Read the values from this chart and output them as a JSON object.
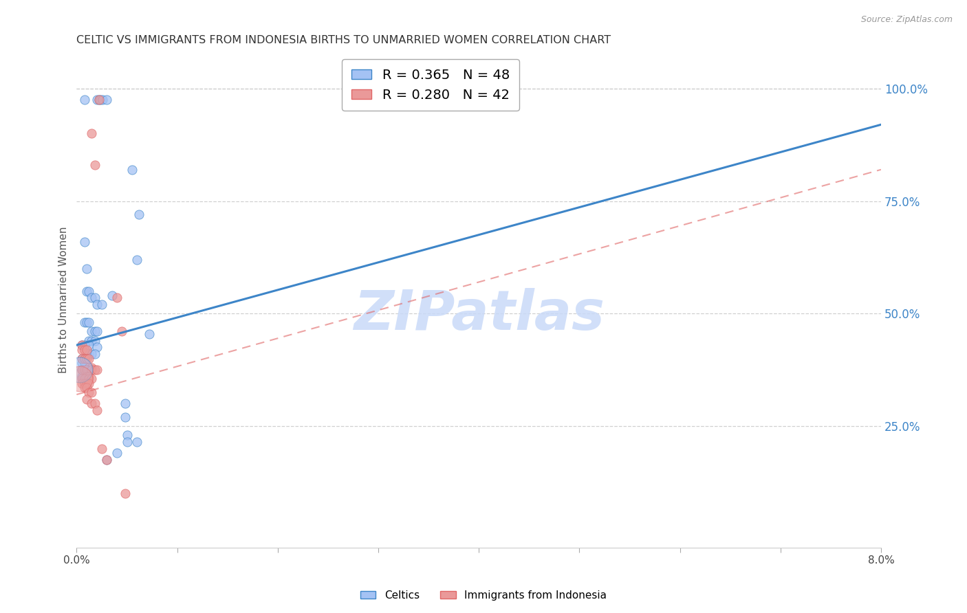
{
  "title": "CELTIC VS IMMIGRANTS FROM INDONESIA BIRTHS TO UNMARRIED WOMEN CORRELATION CHART",
  "source": "Source: ZipAtlas.com",
  "ylabel": "Births to Unmarried Women",
  "xlim": [
    0.0,
    0.08
  ],
  "ylim": [
    -0.02,
    1.08
  ],
  "xticks": [
    0.0,
    0.01,
    0.02,
    0.03,
    0.04,
    0.05,
    0.06,
    0.07,
    0.08
  ],
  "xticklabels": [
    "0.0%",
    "",
    "",
    "",
    "",
    "",
    "",
    "",
    "8.0%"
  ],
  "yticks_right": [
    0.25,
    0.5,
    0.75,
    1.0
  ],
  "ytick_labels_right": [
    "25.0%",
    "50.0%",
    "75.0%",
    "100.0%"
  ],
  "blue_color": "#a4c2f4",
  "pink_color": "#ea9999",
  "blue_line_color": "#3d85c8",
  "pink_line_color": "#e06666",
  "legend_blue_label": "Celtics",
  "legend_pink_label": "Immigrants from Indonesia",
  "R_blue": 0.365,
  "N_blue": 48,
  "R_pink": 0.28,
  "N_pink": 42,
  "watermark": "ZIPatlas",
  "watermark_color": "#c9daf8",
  "blue_line_x": [
    0.0,
    0.08
  ],
  "blue_line_y": [
    0.43,
    0.92
  ],
  "pink_line_x": [
    0.0,
    0.08
  ],
  "pink_line_y": [
    0.32,
    0.82
  ],
  "blue_points": [
    [
      0.0008,
      0.975
    ],
    [
      0.002,
      0.975
    ],
    [
      0.0022,
      0.975
    ],
    [
      0.0024,
      0.975
    ],
    [
      0.0026,
      0.975
    ],
    [
      0.003,
      0.975
    ],
    [
      0.0055,
      0.82
    ],
    [
      0.0062,
      0.72
    ],
    [
      0.0008,
      0.66
    ],
    [
      0.001,
      0.6
    ],
    [
      0.001,
      0.55
    ],
    [
      0.0012,
      0.55
    ],
    [
      0.0015,
      0.535
    ],
    [
      0.0018,
      0.535
    ],
    [
      0.002,
      0.52
    ],
    [
      0.0025,
      0.52
    ],
    [
      0.0008,
      0.48
    ],
    [
      0.001,
      0.48
    ],
    [
      0.0012,
      0.48
    ],
    [
      0.0015,
      0.46
    ],
    [
      0.0018,
      0.46
    ],
    [
      0.002,
      0.46
    ],
    [
      0.0012,
      0.44
    ],
    [
      0.0015,
      0.44
    ],
    [
      0.0018,
      0.44
    ],
    [
      0.0005,
      0.43
    ],
    [
      0.0008,
      0.43
    ],
    [
      0.0012,
      0.43
    ],
    [
      0.002,
      0.425
    ],
    [
      0.0012,
      0.41
    ],
    [
      0.0015,
      0.41
    ],
    [
      0.0018,
      0.41
    ],
    [
      0.0005,
      0.4
    ],
    [
      0.0008,
      0.4
    ],
    [
      0.0005,
      0.39
    ],
    [
      0.0008,
      0.39
    ],
    [
      0.0005,
      0.375
    ],
    [
      0.0005,
      0.36
    ],
    [
      0.0048,
      0.3
    ],
    [
      0.0048,
      0.27
    ],
    [
      0.005,
      0.23
    ],
    [
      0.005,
      0.215
    ],
    [
      0.006,
      0.215
    ],
    [
      0.004,
      0.19
    ],
    [
      0.003,
      0.175
    ],
    [
      0.006,
      0.62
    ],
    [
      0.0072,
      0.455
    ],
    [
      0.0035,
      0.54
    ]
  ],
  "pink_points": [
    [
      0.0022,
      0.975
    ],
    [
      0.0015,
      0.9
    ],
    [
      0.0018,
      0.83
    ],
    [
      0.004,
      0.535
    ],
    [
      0.0045,
      0.46
    ],
    [
      0.0005,
      0.43
    ],
    [
      0.0005,
      0.42
    ],
    [
      0.0008,
      0.42
    ],
    [
      0.001,
      0.42
    ],
    [
      0.0005,
      0.4
    ],
    [
      0.0008,
      0.4
    ],
    [
      0.001,
      0.4
    ],
    [
      0.0012,
      0.4
    ],
    [
      0.0012,
      0.38
    ],
    [
      0.0015,
      0.38
    ],
    [
      0.0005,
      0.375
    ],
    [
      0.0008,
      0.375
    ],
    [
      0.001,
      0.375
    ],
    [
      0.0015,
      0.375
    ],
    [
      0.0018,
      0.375
    ],
    [
      0.002,
      0.375
    ],
    [
      0.001,
      0.36
    ],
    [
      0.0012,
      0.36
    ],
    [
      0.0005,
      0.355
    ],
    [
      0.0008,
      0.355
    ],
    [
      0.0012,
      0.355
    ],
    [
      0.0015,
      0.355
    ],
    [
      0.0005,
      0.345
    ],
    [
      0.0008,
      0.345
    ],
    [
      0.001,
      0.345
    ],
    [
      0.0012,
      0.345
    ],
    [
      0.0008,
      0.335
    ],
    [
      0.001,
      0.335
    ],
    [
      0.0012,
      0.325
    ],
    [
      0.0015,
      0.325
    ],
    [
      0.001,
      0.31
    ],
    [
      0.0015,
      0.3
    ],
    [
      0.0018,
      0.3
    ],
    [
      0.002,
      0.285
    ],
    [
      0.0025,
      0.2
    ],
    [
      0.003,
      0.175
    ],
    [
      0.0048,
      0.1
    ]
  ],
  "blue_large_x": [
    0.0003
  ],
  "blue_large_y": [
    0.375
  ],
  "pink_large_x": [
    0.0003
  ],
  "pink_large_y": [
    0.355
  ],
  "background_color": "#ffffff",
  "grid_color": "#d0d0d0"
}
